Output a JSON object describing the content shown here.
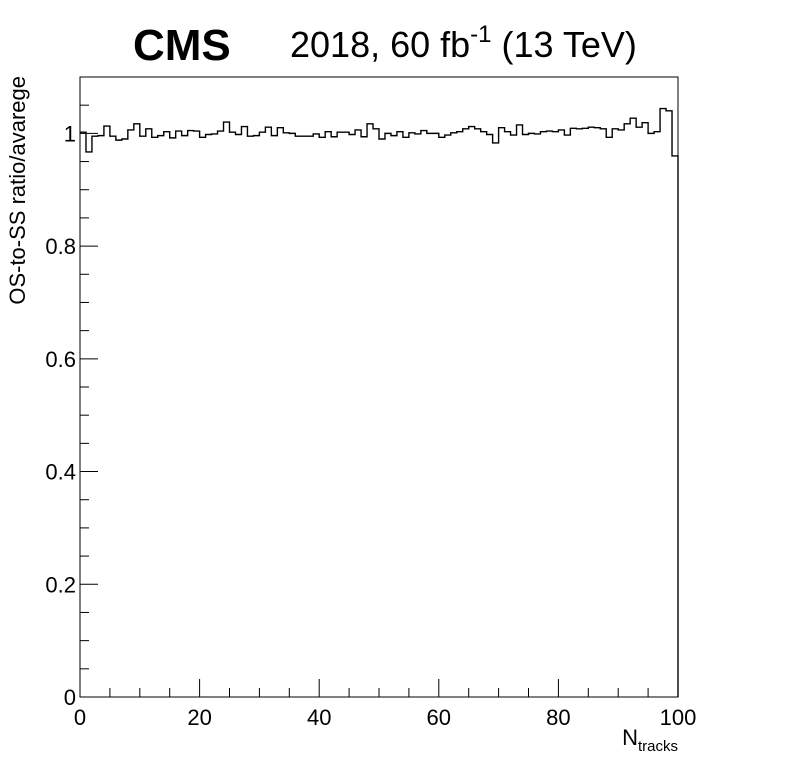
{
  "chart_data": {
    "type": "histogram-step",
    "experiment_label": "CMS",
    "lumi_label": {
      "main": "2018, 60 fb",
      "superscript": "-1",
      "energy": " (13 TeV)"
    },
    "xlabel": {
      "main": "N",
      "subscript": "tracks"
    },
    "ylabel": "OS-to-SS ratio/avarege",
    "xlim": [
      0,
      100
    ],
    "ylim": [
      0,
      1.1
    ],
    "x_major_ticks": [
      0,
      20,
      40,
      60,
      80,
      100
    ],
    "x_major_tick_labels": [
      "0",
      "20",
      "40",
      "60",
      "80",
      "100"
    ],
    "x_minor_step": 5,
    "y_major_ticks": [
      0,
      0.2,
      0.4,
      0.6,
      0.8,
      1.0
    ],
    "y_major_tick_labels": [
      "0",
      "0.2",
      "0.4",
      "0.6",
      "0.8",
      "1"
    ],
    "y_minor_step": 0.05,
    "grid": false,
    "line_color": "#000000",
    "bin_edges_start": 0,
    "bin_width": 1,
    "values": [
      1.002,
      0.967,
      0.995,
      0.996,
      1.013,
      0.995,
      0.988,
      0.99,
      1.006,
      1.017,
      0.995,
      1.008,
      0.993,
      0.996,
      1.003,
      0.992,
      1.004,
      0.996,
      1.005,
      1.004,
      0.993,
      0.998,
      0.999,
      1.004,
      1.02,
      1.002,
      0.998,
      1.012,
      0.995,
      0.996,
      1.002,
      1.011,
      0.996,
      1.01,
      1.001,
      1.0,
      0.995,
      0.995,
      0.995,
      0.999,
      0.993,
      1.003,
      0.994,
      1.002,
      1.002,
      0.998,
      1.006,
      0.994,
      1.017,
      1.008,
      0.99,
      1.0,
      0.996,
      1.003,
      0.993,
      1.001,
      0.999,
      1.005,
      1.0,
      1.0,
      0.993,
      0.997,
      1.001,
      1.003,
      1.008,
      1.012,
      1.008,
      1.003,
      0.998,
      0.983,
      1.01,
      1.003,
      0.997,
      1.015,
      0.998,
      1.0,
      0.999,
      1.003,
      1.004,
      1.003,
      1.006,
      0.997,
      1.009,
      1.008,
      1.009,
      1.011,
      1.01,
      1.008,
      0.993,
      1.008,
      1.006,
      1.017,
      1.027,
      1.011,
      1.019,
      1.0,
      1.003,
      1.044,
      1.04,
      0.96
    ]
  }
}
